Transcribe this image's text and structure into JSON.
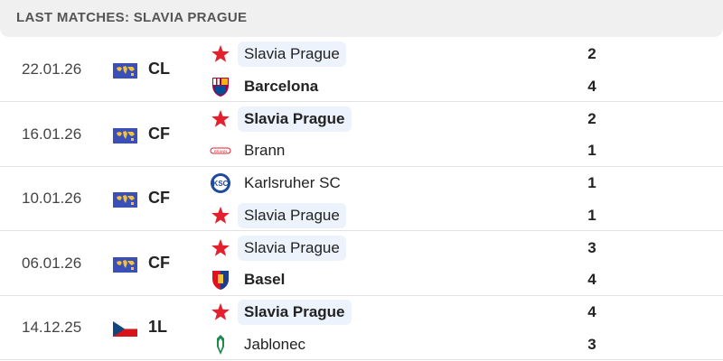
{
  "header": {
    "title": "LAST MATCHES: SLAVIA PRAGUE"
  },
  "colors": {
    "highlight": "#edf3fc",
    "slavia_red": "#e4202e"
  },
  "matches": [
    {
      "date": "22.01.26",
      "competition": "CL",
      "comp_icon": "world-map-icon",
      "home": {
        "name": "Slavia Prague",
        "score": "2",
        "logo": "slavia-star-icon",
        "winner": false,
        "highlight": true
      },
      "away": {
        "name": "Barcelona",
        "score": "4",
        "logo": "barcelona-crest-icon",
        "winner": true,
        "highlight": false
      }
    },
    {
      "date": "16.01.26",
      "competition": "CF",
      "comp_icon": "world-map-icon",
      "home": {
        "name": "Slavia Prague",
        "score": "2",
        "logo": "slavia-star-icon",
        "winner": true,
        "highlight": true
      },
      "away": {
        "name": "Brann",
        "score": "1",
        "logo": "brann-logo-icon",
        "winner": false,
        "highlight": false
      }
    },
    {
      "date": "10.01.26",
      "competition": "CF",
      "comp_icon": "world-map-icon",
      "home": {
        "name": "Karlsruher SC",
        "score": "1",
        "logo": "ksc-crest-icon",
        "winner": false,
        "highlight": false
      },
      "away": {
        "name": "Slavia Prague",
        "score": "1",
        "logo": "slavia-star-icon",
        "winner": false,
        "highlight": true
      }
    },
    {
      "date": "06.01.26",
      "competition": "CF",
      "comp_icon": "world-map-icon",
      "home": {
        "name": "Slavia Prague",
        "score": "3",
        "logo": "slavia-star-icon",
        "winner": false,
        "highlight": true
      },
      "away": {
        "name": "Basel",
        "score": "4",
        "logo": "basel-crest-icon",
        "winner": true,
        "highlight": false
      }
    },
    {
      "date": "14.12.25",
      "competition": "1L",
      "comp_icon": "czech-flag-icon",
      "home": {
        "name": "Slavia Prague",
        "score": "4",
        "logo": "slavia-star-icon",
        "winner": true,
        "highlight": true
      },
      "away": {
        "name": "Jablonec",
        "score": "3",
        "logo": "jablonec-crest-icon",
        "winner": false,
        "highlight": false
      }
    }
  ]
}
